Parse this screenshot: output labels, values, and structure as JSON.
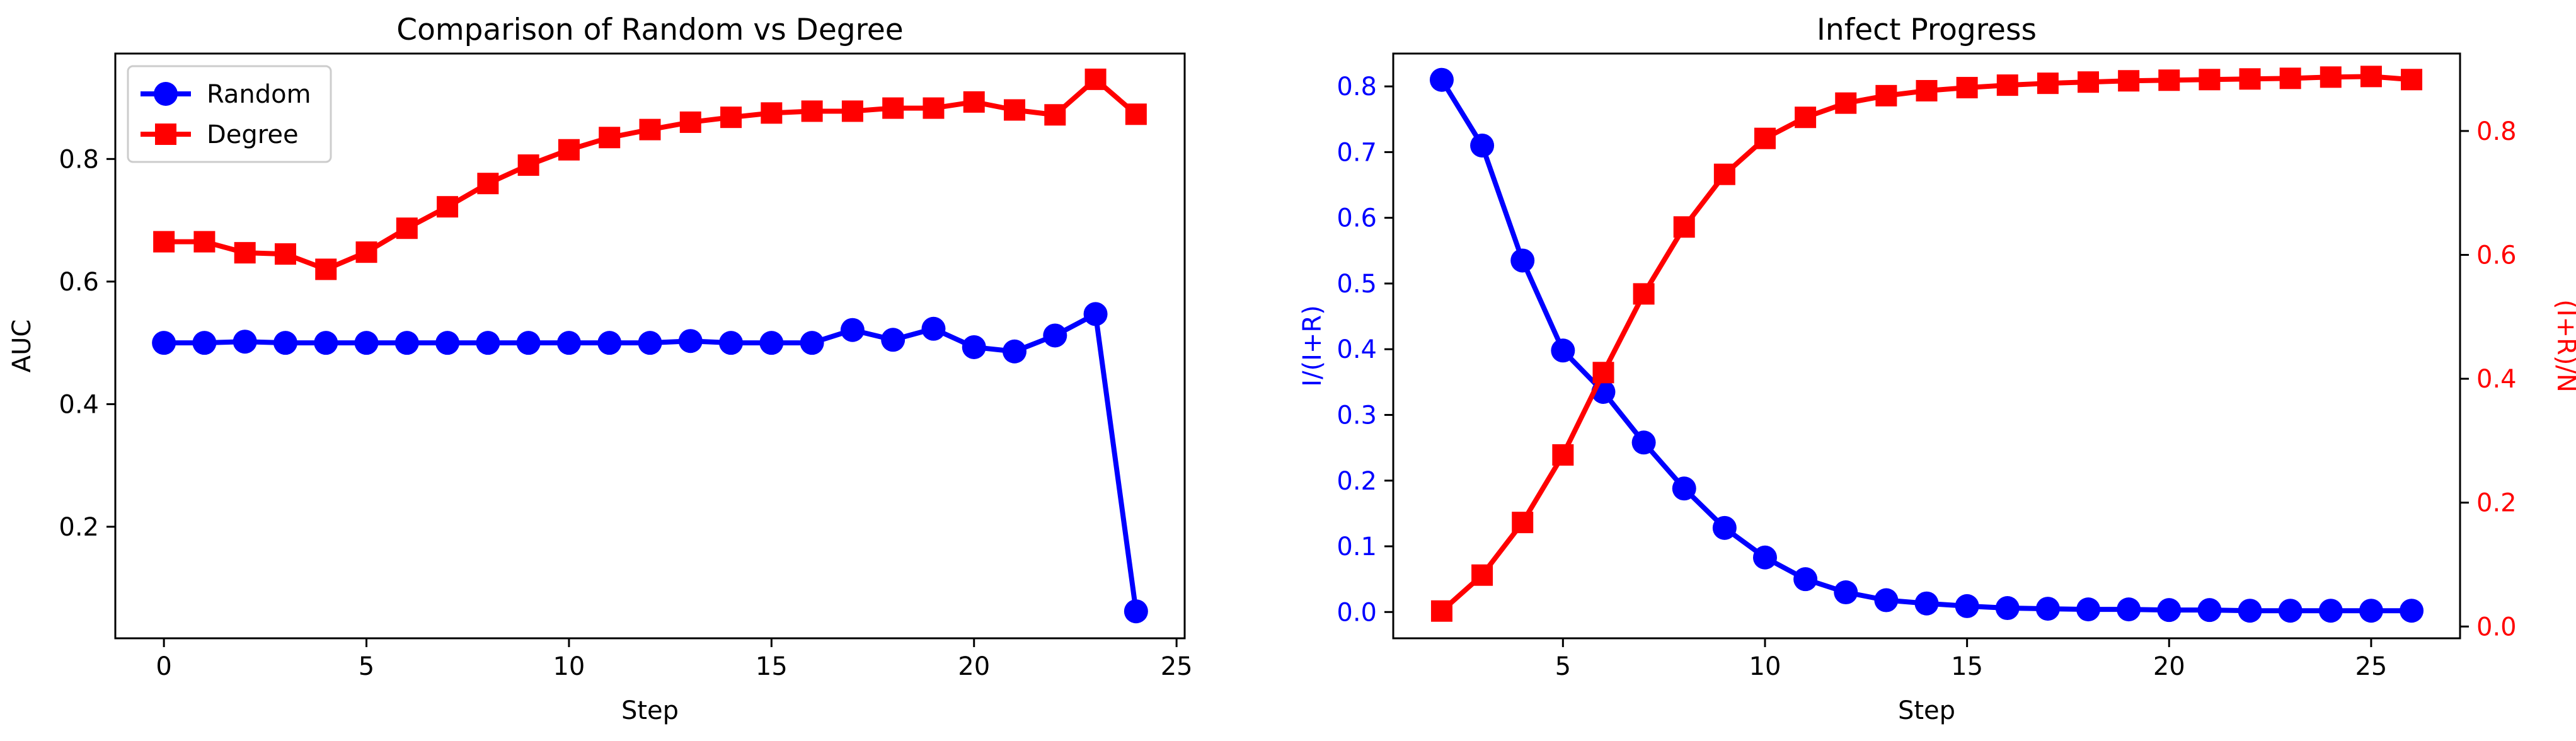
{
  "chart_data": [
    {
      "type": "line",
      "title": "Comparison of Random vs Degree",
      "xlabel": "Step",
      "ylabel": "AUC",
      "xlim": [
        -1.2,
        25.2
      ],
      "ylim": [
        0.018,
        0.972
      ],
      "xticks": [
        0,
        5,
        10,
        15,
        20,
        25
      ],
      "yticks": [
        0.2,
        0.4,
        0.6,
        0.8
      ],
      "grid": false,
      "legend": "top-left",
      "x": [
        0,
        1,
        2,
        3,
        4,
        5,
        6,
        7,
        8,
        9,
        10,
        11,
        12,
        13,
        14,
        15,
        16,
        17,
        18,
        19,
        20,
        21,
        22,
        23,
        24
      ],
      "series": [
        {
          "name": "Random",
          "color": "#0000ff",
          "marker": "circle",
          "values": [
            0.5,
            0.5,
            0.502,
            0.5,
            0.5,
            0.5,
            0.5,
            0.5,
            0.5,
            0.5,
            0.5,
            0.5,
            0.5,
            0.503,
            0.5,
            0.5,
            0.5,
            0.521,
            0.505,
            0.523,
            0.493,
            0.486,
            0.512,
            0.547,
            0.062
          ]
        },
        {
          "name": "Degree",
          "color": "#ff0000",
          "marker": "square",
          "values": [
            0.665,
            0.665,
            0.647,
            0.645,
            0.62,
            0.648,
            0.687,
            0.722,
            0.76,
            0.79,
            0.815,
            0.835,
            0.848,
            0.86,
            0.868,
            0.875,
            0.878,
            0.878,
            0.883,
            0.883,
            0.893,
            0.88,
            0.872,
            0.93,
            0.873
          ]
        }
      ]
    },
    {
      "type": "line",
      "title": "Infect Progress",
      "xlabel": "Step",
      "ylabel": "I/(I+R)",
      "ylabel_right": "(I+R)/N",
      "xlim": [
        0.8,
        27.2
      ],
      "ylim": [
        -0.04,
        0.85
      ],
      "ylim_right": [
        -0.019,
        0.925
      ],
      "xticks": [
        5,
        10,
        15,
        20,
        25
      ],
      "yticks": [
        0.0,
        0.1,
        0.2,
        0.3,
        0.4,
        0.5,
        0.6,
        0.7,
        0.8
      ],
      "yticks_right": [
        0.0,
        0.2,
        0.4,
        0.6,
        0.8
      ],
      "grid": false,
      "x": [
        2,
        3,
        4,
        5,
        6,
        7,
        8,
        9,
        10,
        11,
        12,
        13,
        14,
        15,
        16,
        17,
        18,
        19,
        20,
        21,
        22,
        23,
        24,
        25,
        26
      ],
      "series": [
        {
          "axis": "left",
          "color": "#0000ff",
          "marker": "circle",
          "values": [
            0.81,
            0.71,
            0.535,
            0.398,
            0.335,
            0.258,
            0.188,
            0.128,
            0.083,
            0.05,
            0.03,
            0.018,
            0.013,
            0.009,
            0.006,
            0.005,
            0.004,
            0.004,
            0.003,
            0.003,
            0.002,
            0.002,
            0.002,
            0.002,
            0.002
          ]
        },
        {
          "axis": "right",
          "color": "#ff0000",
          "marker": "square",
          "values": [
            0.025,
            0.083,
            0.168,
            0.277,
            0.41,
            0.537,
            0.645,
            0.73,
            0.788,
            0.822,
            0.845,
            0.857,
            0.865,
            0.87,
            0.874,
            0.877,
            0.879,
            0.881,
            0.882,
            0.883,
            0.884,
            0.885,
            0.887,
            0.888,
            0.883
          ]
        }
      ]
    }
  ]
}
